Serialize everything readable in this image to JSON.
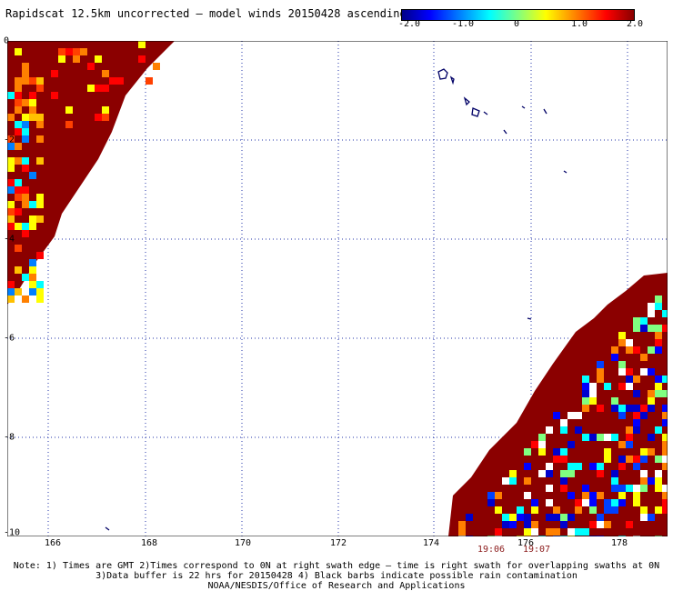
{
  "title": "Rapidscat 12.5km uncorrected — model winds 20150428 ascending",
  "colorbar": {
    "labels": [
      "-2.0",
      "-1.0",
      "0",
      "1.0",
      "2.0"
    ],
    "colors": [
      "#000088",
      "#0000ff",
      "#0080ff",
      "#00ffff",
      "#80ff80",
      "#ffff00",
      "#ff8000",
      "#ff0000",
      "#880000"
    ]
  },
  "axes": {
    "lat_labels": [
      "0",
      "-2",
      "-4",
      "-6",
      "-8",
      "-10"
    ],
    "lon_labels": [
      "166",
      "168",
      "170",
      "172",
      "174",
      "176",
      "178"
    ]
  },
  "swath_times": [
    "19:06",
    "19:07"
  ],
  "notes": [
    "Note: 1) Times are GMT 2)Times correspond to 0N at right swath edge — time is right swath for overlapping swaths at 0N",
    "3)Data buffer is 22 hrs for 20150428 4) Black barbs indicate possible rain contamination",
    "NOAA/NESDIS/Office of Research and Applications"
  ],
  "chart_data": {
    "type": "heatmap",
    "title": "Rapidscat 12.5km uncorrected — model winds 20150428 ascending",
    "xlim": [
      164,
      179.2
    ],
    "ylim": [
      -10,
      0
    ],
    "value_range": [
      -2.0,
      2.0
    ],
    "grid": true,
    "swaths": [
      {
        "side": "left",
        "lon_edge_top": 164,
        "lon_edge_top_right": 167.4,
        "lat_bottom": -5.4,
        "dominant_value": 2.0
      },
      {
        "side": "right",
        "lat_top": -4.6,
        "lon_edge_bottom_left": 174.4,
        "dominant_value": 2.0,
        "mixed_negative_region": true
      }
    ]
  }
}
